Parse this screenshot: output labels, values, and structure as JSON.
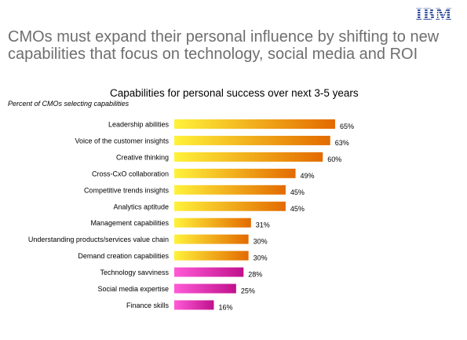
{
  "header": {
    "logo_text": "IBM",
    "headline_line1": "CMOs must expand their personal influence by shifting to new",
    "headline_line2": "capabilities that focus on technology, social media and ROI"
  },
  "colors": {
    "headline": "#6e6e6e",
    "logo": "#2c4a9a",
    "orange_start": "#fff23a",
    "orange_end": "#e36a00",
    "magenta_start": "#ff5ad8",
    "magenta_end": "#c0118c"
  },
  "chart_data": {
    "type": "bar",
    "orientation": "horizontal",
    "title": "Capabilities for personal success over next 3-5 years",
    "subtitle": "Percent of CMOs selecting capabilities",
    "xlim": [
      0,
      65
    ],
    "value_suffix": "%",
    "grid": false,
    "legend": "none",
    "categories": [
      "Leadership abilities",
      "Voice of the customer insights",
      "Creative thinking",
      "Cross-CxO collaboration",
      "Competitive trends insights",
      "Analytics aptitude",
      "Management capabilities",
      "Understanding products/services value chain",
      "Demand creation capabilities",
      "Technology savviness",
      "Social media expertise",
      "Finance skills"
    ],
    "values": [
      65,
      63,
      60,
      49,
      45,
      45,
      31,
      30,
      30,
      28,
      25,
      16
    ],
    "bar_color_groups": [
      "orange",
      "orange",
      "orange",
      "orange",
      "orange",
      "orange",
      "orange",
      "orange",
      "orange",
      "magenta",
      "magenta",
      "magenta"
    ]
  }
}
